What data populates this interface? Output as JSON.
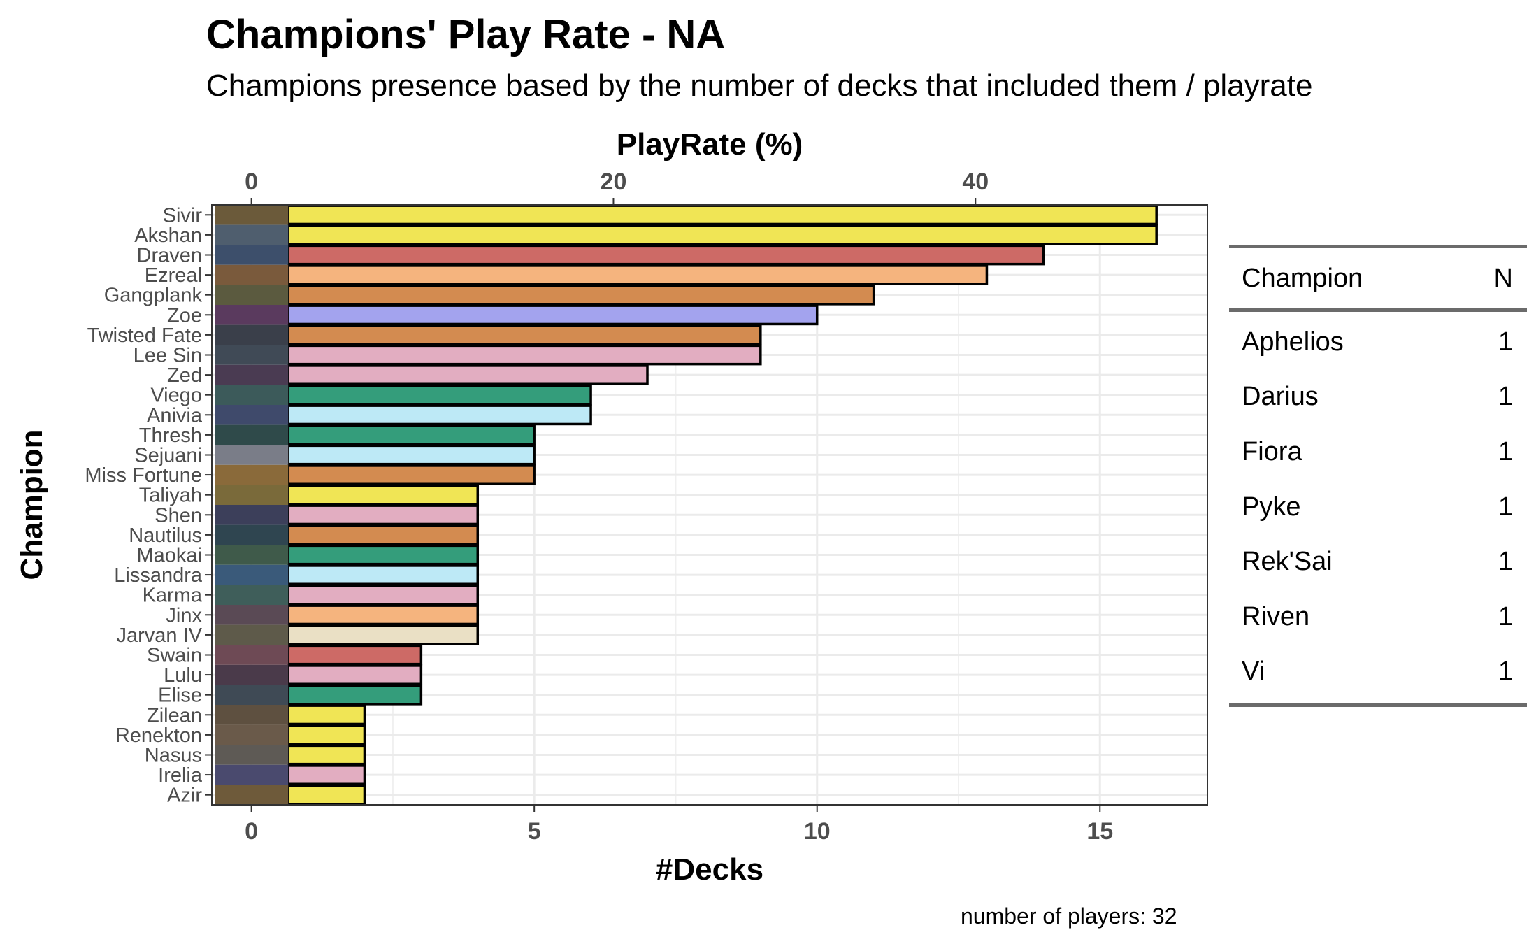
{
  "title": "Champions' Play Rate - NA",
  "subtitle": "Champions presence based by the number of decks that included them / playrate",
  "caption": "number of players: 32",
  "chart_data": {
    "type": "bar",
    "orientation": "horizontal",
    "xlabel": "#Decks",
    "ylabel": "Champion",
    "secondary_xlabel": "PlayRate (%)",
    "xlim": [
      -0.7,
      16.9
    ],
    "x_ticks": [
      "0",
      "5",
      "10",
      "15"
    ],
    "secondary_ticks": [
      "0",
      "20",
      "40"
    ],
    "grid": true,
    "categories": [
      "Sivir",
      "Akshan",
      "Draven",
      "Ezreal",
      "Gangplank",
      "Zoe",
      "Twisted Fate",
      "Lee Sin",
      "Zed",
      "Viego",
      "Anivia",
      "Thresh",
      "Sejuani",
      "Miss Fortune",
      "Taliyah",
      "Shen",
      "Nautilus",
      "Maokai",
      "Lissandra",
      "Karma",
      "Jinx",
      "Jarvan IV",
      "Swain",
      "Lulu",
      "Elise",
      "Zilean",
      "Renekton",
      "Nasus",
      "Irelia",
      "Azir"
    ],
    "values": [
      16,
      16,
      14,
      13,
      11,
      10,
      9,
      9,
      7,
      6,
      6,
      5,
      5,
      5,
      4,
      4,
      4,
      4,
      4,
      4,
      4,
      4,
      3,
      3,
      3,
      2,
      2,
      2,
      2,
      2
    ],
    "colors": [
      "#f0e555",
      "#f0e555",
      "#cd6a66",
      "#f5b47e",
      "#d38b50",
      "#a3a3ee",
      "#d38b50",
      "#e2adc1",
      "#e2adc1",
      "#349d7b",
      "#bde9f6",
      "#349d7b",
      "#bde9f6",
      "#d38b50",
      "#f0e555",
      "#e2adc1",
      "#d38b50",
      "#349d7b",
      "#bde9f6",
      "#e2adc1",
      "#f5b47e",
      "#eae0c5",
      "#cd6a66",
      "#e2adc1",
      "#349d7b",
      "#f0e555",
      "#f0e555",
      "#f0e555",
      "#e2adc1",
      "#f0e555"
    ]
  },
  "table": {
    "headers": [
      "Champion",
      "N"
    ],
    "rows": [
      {
        "champion": "Aphelios",
        "n": "1"
      },
      {
        "champion": "Darius",
        "n": "1"
      },
      {
        "champion": "Fiora",
        "n": "1"
      },
      {
        "champion": "Pyke",
        "n": "1"
      },
      {
        "champion": "Rek'Sai",
        "n": "1"
      },
      {
        "champion": "Riven",
        "n": "1"
      },
      {
        "champion": "Vi",
        "n": "1"
      }
    ]
  }
}
